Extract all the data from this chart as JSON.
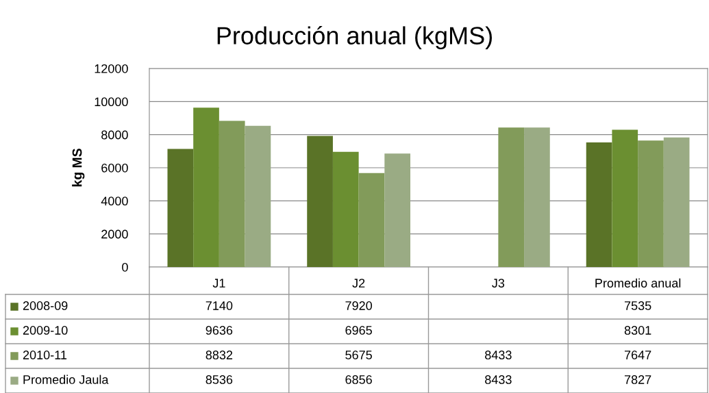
{
  "chart_data": {
    "type": "bar",
    "title": "Producción anual (kgMS)",
    "ylabel": "kg MS",
    "categories": [
      "J1",
      "J2",
      "J3",
      "Promedio anual"
    ],
    "series": [
      {
        "name": "2008-09",
        "color": "#5a7327",
        "values": [
          7140,
          7920,
          null,
          7535
        ]
      },
      {
        "name": "2009-10",
        "color": "#6b8f31",
        "values": [
          9636,
          6965,
          null,
          8301
        ]
      },
      {
        "name": "2010-11",
        "color": "#829b5a",
        "values": [
          8832,
          5675,
          8433,
          7647
        ]
      },
      {
        "name": "Promedio Jaula",
        "color": "#9aab84",
        "values": [
          8536,
          6856,
          8433,
          7827
        ]
      }
    ],
    "ylim": [
      0,
      12000
    ],
    "yticks": [
      0,
      2000,
      4000,
      6000,
      8000,
      10000,
      12000
    ],
    "grid": "y",
    "legend": "bottom",
    "data_labels": true
  }
}
